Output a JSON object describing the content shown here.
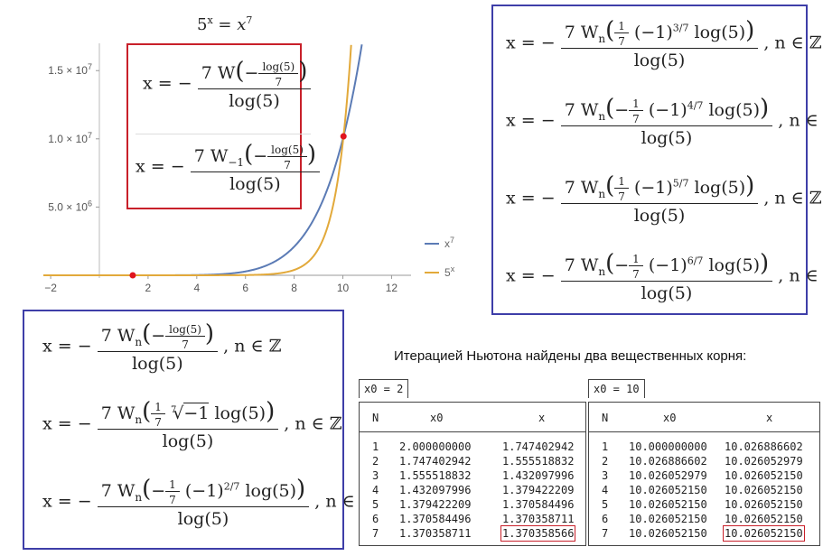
{
  "chart_data": {
    "type": "line",
    "title": "5^x = x^7",
    "xlim": [
      -2.3,
      12.8
    ],
    "ylim": [
      -200000,
      17000000
    ],
    "xticks": [
      -2,
      2,
      4,
      6,
      8,
      10,
      12
    ],
    "xtick_labels": [
      "−2",
      "2",
      "4",
      "6",
      "8",
      "10",
      "12"
    ],
    "yticks": [
      5000000,
      10000000,
      15000000
    ],
    "ytick_labels": [
      "5.0 × 10^6",
      "1.0 × 10^7",
      "1.5 × 10^7"
    ],
    "series": [
      {
        "name": "x^7",
        "formula": "x^7",
        "color": "#5b7bb5"
      },
      {
        "name": "5^x",
        "formula": "5^x",
        "color": "#e2a93a"
      }
    ],
    "points": [
      {
        "x": 1.370358566,
        "y": 9.1
      },
      {
        "x": 10.02605215,
        "y": 10183000
      }
    ],
    "point_color": "#e0141e",
    "legend_position": "right"
  },
  "title": {
    "lhs": "5",
    "exp": "x",
    "rhs": "x",
    "rexp": "7"
  },
  "red_box": {
    "f1": {
      "x": "x = −",
      "coef": "7 W",
      "arg_pre": "−",
      "arg_num": "log(5)",
      "arg_den": "7",
      "den": "log(5)"
    },
    "f2": {
      "x": "x = −",
      "coef": "7 W",
      "sub": "−1",
      "arg_pre": "−",
      "arg_num": "log(5)",
      "arg_den": "7",
      "den": "log(5)"
    }
  },
  "right_box": [
    {
      "x": "x = −",
      "coef": "7 W",
      "sub": "n",
      "sign": "",
      "frac_num": "1",
      "frac_den": "7",
      "term": "(−1)",
      "pow": "3/7",
      "log": "log(5)",
      "den": "log(5)",
      "tail": ",   n ∈ ℤ"
    },
    {
      "x": "x = −",
      "coef": "7 W",
      "sub": "n",
      "sign": "−",
      "frac_num": "1",
      "frac_den": "7",
      "term": "(−1)",
      "pow": "4/7",
      "log": "log(5)",
      "den": "log(5)",
      "tail": ",   n ∈ ℤ"
    },
    {
      "x": "x = −",
      "coef": "7 W",
      "sub": "n",
      "sign": "",
      "frac_num": "1",
      "frac_den": "7",
      "term": "(−1)",
      "pow": "5/7",
      "log": "log(5)",
      "den": "log(5)",
      "tail": ",   n ∈ ℤ"
    },
    {
      "x": "x = −",
      "coef": "7 W",
      "sub": "n",
      "sign": "−",
      "frac_num": "1",
      "frac_den": "7",
      "term": "(−1)",
      "pow": "6/7",
      "log": "log(5)",
      "den": "log(5)",
      "tail": ",   n ∈ ℤ"
    }
  ],
  "left_box": {
    "f1": {
      "x": "x = −",
      "coef": "7 W",
      "sub": "n",
      "arg_pre": "−",
      "arg_num": "log(5)",
      "arg_den": "7",
      "den": "log(5)",
      "tail": ",   n ∈ ℤ"
    },
    "f2": {
      "x": "x = −",
      "coef": "7 W",
      "sub": "n",
      "frac_num": "1",
      "frac_den": "7",
      "root_idx": "7",
      "radicand": "−1",
      "log": "log(5)",
      "den": "log(5)",
      "tail": ",   n ∈ ℤ"
    },
    "f3": {
      "x": "x = −",
      "coef": "7 W",
      "sub": "n",
      "sign": "−",
      "frac_num": "1",
      "frac_den": "7",
      "term": "(−1)",
      "pow": "2/7",
      "log": "log(5)",
      "den": "log(5)",
      "tail": ",   n ∈ ℤ"
    }
  },
  "caption": "Итерацией Ньютона найдены два вещественных корня:",
  "table1": {
    "tab": "x0 = 2",
    "headers": [
      "N",
      "x0",
      "x"
    ],
    "rows": [
      [
        "1",
        "2.000000000",
        "1.747402942"
      ],
      [
        "2",
        "1.747402942",
        "1.555518832"
      ],
      [
        "3",
        "1.555518832",
        "1.432097996"
      ],
      [
        "4",
        "1.432097996",
        "1.379422209"
      ],
      [
        "5",
        "1.379422209",
        "1.370584496"
      ],
      [
        "6",
        "1.370584496",
        "1.370358711"
      ],
      [
        "7",
        "1.370358711",
        "1.370358566"
      ]
    ]
  },
  "table2": {
    "tab": "x0 = 10",
    "headers": [
      "N",
      "x0",
      "x"
    ],
    "rows": [
      [
        "1",
        "10.000000000",
        "10.026886602"
      ],
      [
        "2",
        "10.026886602",
        "10.026052979"
      ],
      [
        "3",
        "10.026052979",
        "10.026052150"
      ],
      [
        "4",
        "10.026052150",
        "10.026052150"
      ],
      [
        "5",
        "10.026052150",
        "10.026052150"
      ],
      [
        "6",
        "10.026052150",
        "10.026052150"
      ],
      [
        "7",
        "10.026052150",
        "10.026052150"
      ]
    ]
  }
}
